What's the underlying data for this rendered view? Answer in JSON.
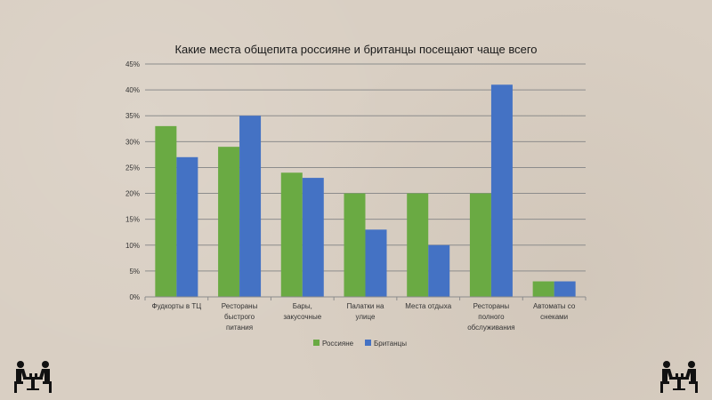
{
  "colors": {
    "series_1": "#6aaa43",
    "series_2": "#4472c4",
    "grid": "#8c8c8c",
    "axis": "#8c8c8c"
  },
  "chart_data": {
    "type": "bar",
    "title": "Какие места общепита россияне и британцы посещают чаще всего",
    "categories": [
      [
        "Фудкорты в ТЦ"
      ],
      [
        "Рестораны",
        "быстрого",
        "питания"
      ],
      [
        "Бары,",
        "закусочные"
      ],
      [
        "Палатки на",
        "улице"
      ],
      [
        "Места отдыха"
      ],
      [
        "Рестораны",
        "полного",
        "обслуживания"
      ],
      [
        "Автоматы со",
        "снеками"
      ]
    ],
    "series": [
      {
        "name": "Россияне",
        "values": [
          33,
          29,
          24,
          20,
          20,
          20,
          3
        ]
      },
      {
        "name": "Британцы",
        "values": [
          27,
          35,
          23,
          13,
          10,
          41,
          3
        ]
      }
    ],
    "ylim": [
      0,
      45
    ],
    "yticks": [
      "0%",
      "5%",
      "10%",
      "15%",
      "20%",
      "25%",
      "30%",
      "35%",
      "40%",
      "45%"
    ],
    "grid": true,
    "legend_position": "bottom",
    "xlabel": "",
    "ylabel": ""
  },
  "icons": {
    "left": "people-at-table-icon",
    "right": "people-at-table-icon"
  }
}
